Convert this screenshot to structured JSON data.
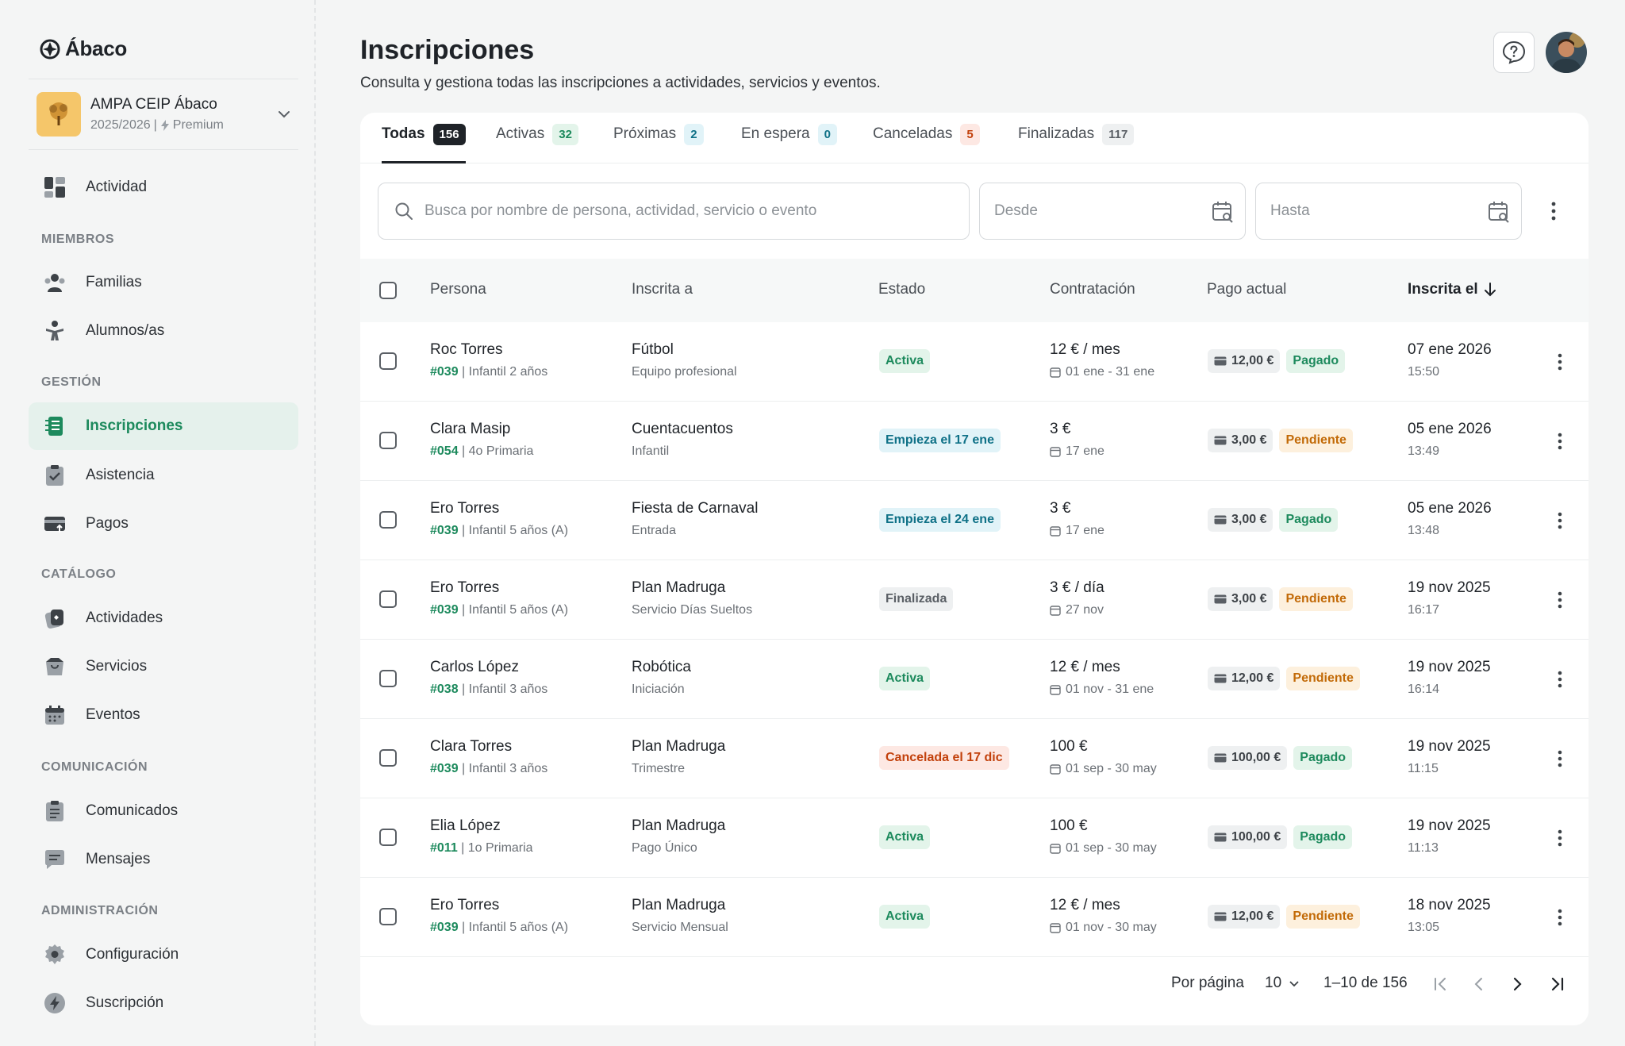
{
  "app": {
    "name": "Ábaco"
  },
  "org": {
    "name": "AMPA CEIP Ábaco",
    "year": "2025/2026",
    "plan": "Premium"
  },
  "sidebar": {
    "items": [
      {
        "label": "Actividad",
        "icon": "dashboard-icon"
      },
      {
        "label": "Familias",
        "icon": "family-icon"
      },
      {
        "label": "Alumnos/as",
        "icon": "student-icon"
      },
      {
        "label": "Inscripciones",
        "icon": "inscriptions-icon"
      },
      {
        "label": "Asistencia",
        "icon": "attendance-icon"
      },
      {
        "label": "Pagos",
        "icon": "payments-icon"
      },
      {
        "label": "Actividades",
        "icon": "activities-icon"
      },
      {
        "label": "Servicios",
        "icon": "services-icon"
      },
      {
        "label": "Eventos",
        "icon": "events-icon"
      },
      {
        "label": "Comunicados",
        "icon": "announcements-icon"
      },
      {
        "label": "Mensajes",
        "icon": "messages-icon"
      },
      {
        "label": "Configuración",
        "icon": "settings-icon"
      },
      {
        "label": "Suscripción",
        "icon": "subscription-icon"
      }
    ],
    "sections": {
      "miembros": "MIEMBROS",
      "gestion": "GESTIÓN",
      "catalogo": "CATÁLOGO",
      "comunicacion": "COMUNICACIÓN",
      "administracion": "ADMINISTRACIÓN"
    }
  },
  "header": {
    "title": "Inscripciones",
    "subtitle": "Consulta y gestiona todas las inscripciones a actividades, servicios y eventos."
  },
  "tabs": [
    {
      "label": "Todas",
      "count": "156"
    },
    {
      "label": "Activas",
      "count": "32"
    },
    {
      "label": "Próximas",
      "count": "2"
    },
    {
      "label": "En espera",
      "count": "0"
    },
    {
      "label": "Canceladas",
      "count": "5"
    },
    {
      "label": "Finalizadas",
      "count": "117"
    }
  ],
  "filters": {
    "search_placeholder": "Busca por nombre de persona, actividad, servicio o evento",
    "from_placeholder": "Desde",
    "to_placeholder": "Hasta"
  },
  "table": {
    "columns": {
      "person": "Persona",
      "enrolled_in": "Inscrita a",
      "status": "Estado",
      "contract": "Contratación",
      "payment": "Pago actual",
      "date": "Inscrita el"
    },
    "rows": [
      {
        "name": "Roc Torres",
        "id": "#039",
        "group": " | Infantil 2 años",
        "activity": "Fútbol",
        "activity_sub": "Equipo profesional",
        "status": "Activa",
        "status_type": "activa",
        "price": "12 € / mes",
        "period": "01 ene - 31 ene",
        "amount": "12,00 €",
        "pay_status": "Pagado",
        "date": "07 ene 2026",
        "time": "15:50"
      },
      {
        "name": "Clara Masip",
        "id": "#054",
        "group": " | 4o Primaria",
        "activity": "Cuentacuentos",
        "activity_sub": "Infantil",
        "status": "Empieza el 17 ene",
        "status_type": "empieza",
        "price": "3 €",
        "period": "17 ene",
        "amount": "3,00 €",
        "pay_status": "Pendiente",
        "date": "05 ene 2026",
        "time": "13:49"
      },
      {
        "name": "Ero Torres",
        "id": "#039",
        "group": " | Infantil 5 años (A)",
        "activity": "Fiesta de Carnaval",
        "activity_sub": "Entrada",
        "status": "Empieza el 24 ene",
        "status_type": "empieza",
        "price": "3 €",
        "period": "17 ene",
        "amount": "3,00 €",
        "pay_status": "Pagado",
        "date": "05 ene 2026",
        "time": "13:48"
      },
      {
        "name": "Ero Torres",
        "id": "#039",
        "group": " | Infantil 5 años (A)",
        "activity": "Plan Madruga",
        "activity_sub": "Servicio Días Sueltos",
        "status": "Finalizada",
        "status_type": "final",
        "price": "3 € / día",
        "period": "27 nov",
        "amount": "3,00 €",
        "pay_status": "Pendiente",
        "date": "19 nov 2025",
        "time": "16:17"
      },
      {
        "name": "Carlos López",
        "id": "#038",
        "group": " | Infantil 3 años",
        "activity": "Robótica",
        "activity_sub": "Iniciación",
        "status": "Activa",
        "status_type": "activa",
        "price": "12 € / mes",
        "period": "01 nov - 31 ene",
        "amount": "12,00 €",
        "pay_status": "Pendiente",
        "date": "19 nov 2025",
        "time": "16:14"
      },
      {
        "name": "Clara Torres",
        "id": "#039",
        "group": " | Infantil 3 años",
        "activity": "Plan Madruga",
        "activity_sub": "Trimestre",
        "status": "Cancelada el 17 dic",
        "status_type": "cancel",
        "price": "100 €",
        "period": "01 sep - 30 may",
        "amount": "100,00 €",
        "pay_status": "Pagado",
        "date": "19 nov 2025",
        "time": "11:15"
      },
      {
        "name": "Elia López",
        "id": "#011",
        "group": " | 1o Primaria",
        "activity": "Plan Madruga",
        "activity_sub": "Pago Único",
        "status": "Activa",
        "status_type": "activa",
        "price": "100 €",
        "period": "01 sep - 30 may",
        "amount": "100,00 €",
        "pay_status": "Pagado",
        "date": "19 nov 2025",
        "time": "11:13"
      },
      {
        "name": "Ero Torres",
        "id": "#039",
        "group": " | Infantil 5 años (A)",
        "activity": "Plan Madruga",
        "activity_sub": "Servicio Mensual",
        "status": "Activa",
        "status_type": "activa",
        "price": "12 € / mes",
        "period": "01 nov - 30 may",
        "amount": "12,00 €",
        "pay_status": "Pendiente",
        "date": "18 nov 2025",
        "time": "13:05"
      }
    ]
  },
  "pagination": {
    "per_page_label": "Por página",
    "per_page": "10",
    "range": "1–10 de 156"
  },
  "colors": {
    "accent": "#1d8a5d",
    "accent_bg": "#e5f1ec"
  }
}
